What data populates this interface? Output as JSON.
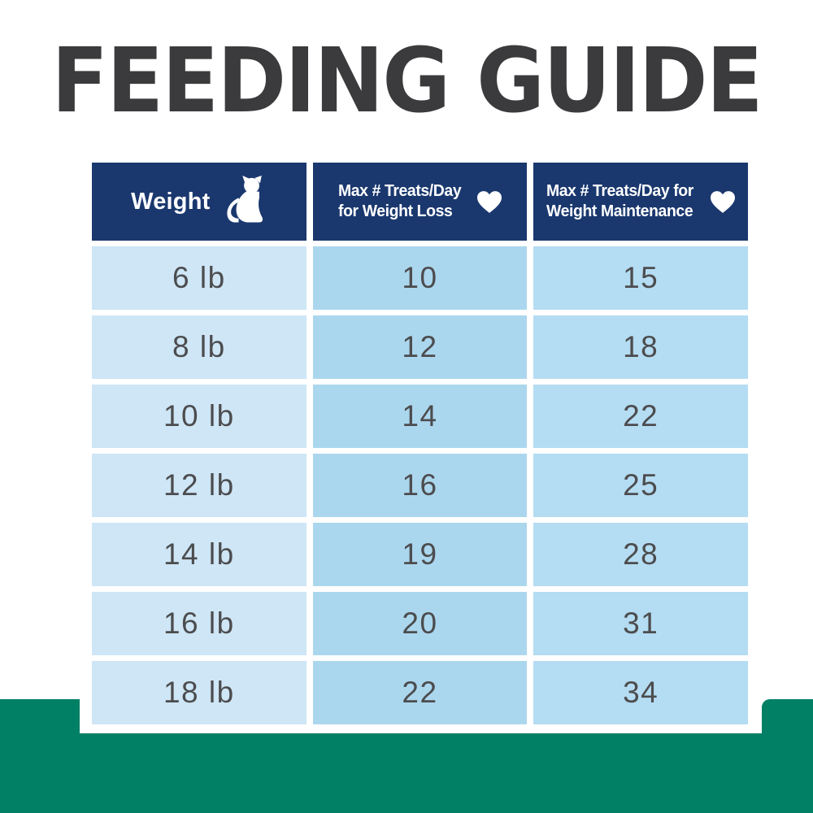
{
  "title": {
    "text": "FEEDING GUIDE"
  },
  "table": {
    "header": {
      "weight": {
        "label": "Weight",
        "icon": "cat-icon"
      },
      "loss": {
        "line1": "Max # Treats/Day",
        "line2": "for Weight Loss",
        "icon": "heart-icon"
      },
      "maintenance": {
        "line1": "Max # Treats/Day for",
        "line2": "Weight Maintenance",
        "icon": "heart-icon"
      }
    },
    "rows": [
      {
        "weight": "6 lb",
        "loss": "10",
        "maintenance": "15"
      },
      {
        "weight": "8 lb",
        "loss": "12",
        "maintenance": "18"
      },
      {
        "weight": "10 lb",
        "loss": "14",
        "maintenance": "22"
      },
      {
        "weight": "12 lb",
        "loss": "16",
        "maintenance": "25"
      },
      {
        "weight": "14 lb",
        "loss": "19",
        "maintenance": "28"
      },
      {
        "weight": "16 lb",
        "loss": "20",
        "maintenance": "31"
      },
      {
        "weight": "18 lb",
        "loss": "22",
        "maintenance": "34"
      }
    ]
  },
  "colors": {
    "title_text": "#3b3b3d",
    "header_bg": "#1a386e",
    "header_text": "#ffffff",
    "weight_col_bg": "#cee6f6",
    "loss_col_bg": "#abd7ee",
    "maintenance_col_bg": "#b4dcf2",
    "cell_text": "#4c4c4e",
    "footer_band": "#028066"
  },
  "chart_data": {
    "type": "table",
    "title": "FEEDING GUIDE",
    "columns": [
      "Weight",
      "Max # Treats/Day for Weight Loss",
      "Max # Treats/Day for Weight Maintenance"
    ],
    "rows": [
      [
        "6 lb",
        10,
        15
      ],
      [
        "8 lb",
        12,
        18
      ],
      [
        "10 lb",
        14,
        22
      ],
      [
        "12 lb",
        16,
        25
      ],
      [
        "14 lb",
        19,
        28
      ],
      [
        "16 lb",
        20,
        31
      ],
      [
        "18 lb",
        22,
        34
      ]
    ]
  }
}
